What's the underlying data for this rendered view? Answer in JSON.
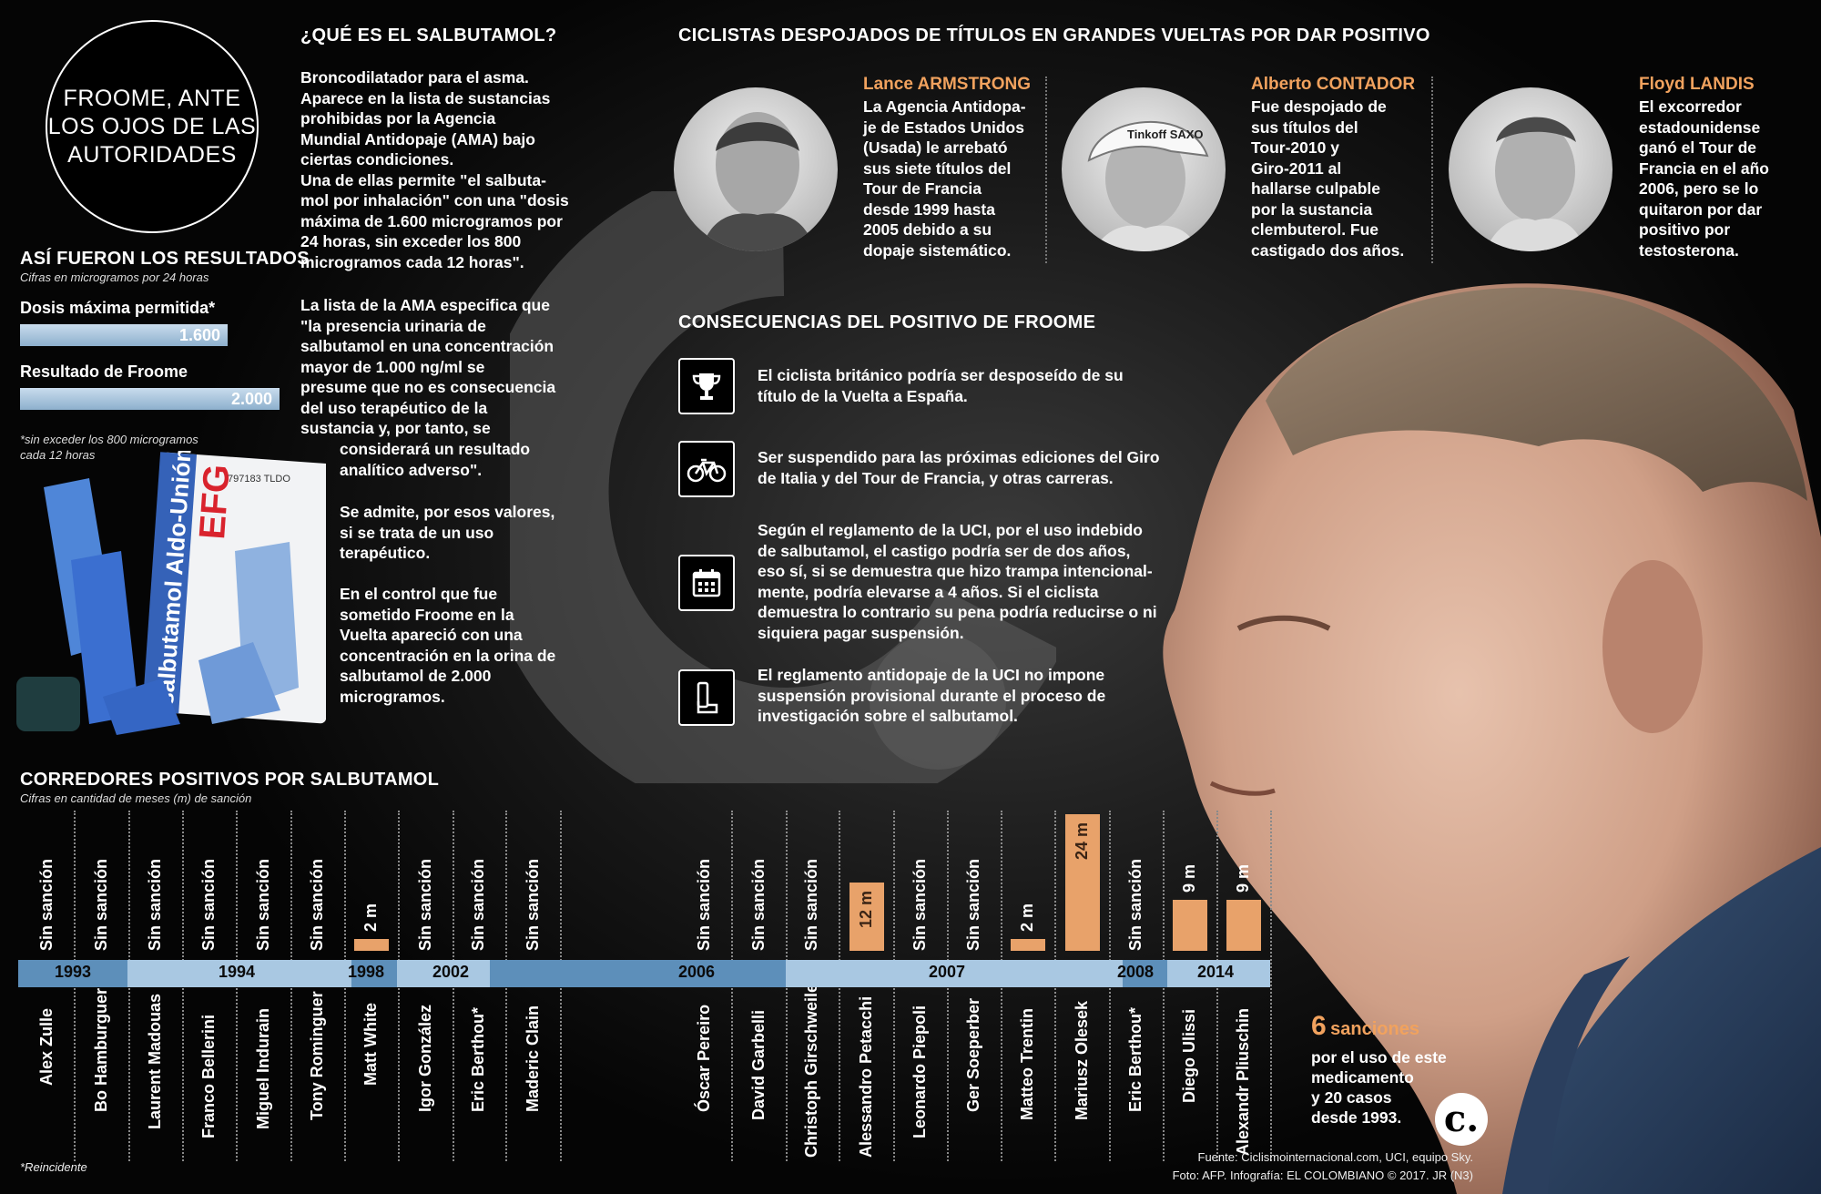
{
  "title": "FROOME, ANTE LOS OJOS DE LAS AUTORIDADES",
  "colors": {
    "accent_orange": "#e8a26a",
    "accent_name": "#f1a25e",
    "timeline_blue": "#5d8fba",
    "timeline_light": "#a9c8e2"
  },
  "results": {
    "heading": "ASÍ FUERON LOS RESULTADOS",
    "subtitle": "Cifras en microgramos por 24 horas",
    "items": [
      {
        "label": "Dosis máxima permitida*",
        "value_text": "1.600",
        "value": 1600
      },
      {
        "label": "Resultado de Froome",
        "value_text": "2.000",
        "value": 2000
      }
    ],
    "footnote": "*sin exceder los 800 microgramos\ncada 12 horas"
  },
  "inhaler": {
    "box_brand": "salbutamol Aldo-Unión",
    "box_logo": "EFG",
    "box_code": "797183 TLDO"
  },
  "salbutamol": {
    "heading": "¿QUÉ ES EL SALBUTAMOL?",
    "p1": "Broncodilatador para el asma.\nAparece en la lista de sustancias\nprohibidas por la Agencia\nMundial Antidopaje (AMA) bajo\nciertas condiciones.\nUna de ellas permite \"el salbuta-\nmol por inhalación\" con una \"dosis\nmáxima de 1.600 microgramos por\n24 horas, sin exceder los 800\nmicrogramos cada 12 horas\".",
    "p2": "La lista de la AMA especifica que\n\"la presencia urinaria de\nsalbutamol en una concentración\nmayor de 1.000 ng/ml se\npresume que no es consecuencia\ndel uso terapéutico de la\nsustancia y, por tanto, se",
    "p2b": "considerará un resultado\nanalítico adverso\".",
    "p3": "Se admite, por esos valores,\nsi se trata de un uso\nterapéutico.",
    "p4": "En el control que fue\nsometido Froome en la\nVuelta apareció con una\nconcentración en la orina de\nsalbutamol de 2.000\nmicrogramos."
  },
  "cyclists": {
    "heading": "CICLISTAS DESPOJADOS DE TÍTULOS EN GRANDES VUELTAS POR DAR POSITIVO",
    "items": [
      {
        "first": "Lance",
        "last": "ARMSTRONG",
        "text": "La Agencia Antidopa-\nje de Estados Unidos\n(Usada) le arrebató\nsus siete títulos del\nTour de Francia\ndesde 1999 hasta\n2005 debido a su\ndopaje sistemático."
      },
      {
        "first": "Alberto",
        "last": "CONTADOR",
        "text": "Fue despojado de\nsus títulos del\nTour-2010 y\nGiro-2011 al\nhallarse culpable\npor la sustancia\nclembuterol. Fue\ncastigado dos años.",
        "cap_text": "Tinkoff SAXO"
      },
      {
        "first": "Floyd",
        "last": "LANDIS",
        "text": "El excorredor\nestadounidense\nganó el Tour de\nFrancia en el año\n2006, pero se lo\nquitaron por dar\npositivo por\ntestosterona."
      }
    ]
  },
  "consequences": {
    "heading": "CONSECUENCIAS DEL POSITIVO DE FROOME",
    "items": [
      {
        "icon": "trophy-icon",
        "text": "El ciclista británico podría ser desposeído de su\ntítulo de la Vuelta a España."
      },
      {
        "icon": "bicycle-icon",
        "text": "Ser suspendido para las próximas ediciones del Giro\nde Italia y del Tour de Francia, y otras carreras."
      },
      {
        "icon": "calendar-icon",
        "text": "Según el reglamento de la UCI, por el uso indebido\nde salbutamol, el castigo podría ser de dos años,\neso sí, si se demuestra que hizo trampa intencional-\nmente, podría elevarse a 4 años. Si el ciclista\ndemuestra lo contrario su pena podría reducirse o ni\nsiquiera pagar suspensión."
      },
      {
        "icon": "inhaler-icon",
        "text": "El reglamento antidopaje de la UCI no impone\nsuspensión provisional durante el proceso de\ninvestigación sobre el salbutamol."
      }
    ]
  },
  "runners": {
    "heading": "CORREDORES POSITIVOS POR SALBUTAMOL",
    "subtitle": "Cifras en cantidad de meses (m) de sanción",
    "footnote": "*Reincidente",
    "years": [
      "1993",
      "1994",
      "1998",
      "2002",
      "2006",
      "2007",
      "2008",
      "2014"
    ]
  },
  "chart_data": {
    "type": "bar",
    "unit": "meses (m)",
    "categories": [
      "Alex Zulle",
      "Bo Hamburguer",
      "Laurent Madouas",
      "Franco Bellerini",
      "Miguel Indurain",
      "Tony Rominguer",
      "Matt White",
      "Igor González",
      "Eric Berthou*",
      "Maderic Clain",
      "Óscar Pereiro",
      "David Garbelli",
      "Christoph Girschweiler",
      "Alessandro Petacchi",
      "Leonardo Piepoli",
      "Ger Soeperber",
      "Matteo Trentin",
      "Mariusz Olesek",
      "Eric Berthou*",
      "Diego Ulissi",
      "Alexandr Pliuschin"
    ],
    "values": [
      0,
      0,
      0,
      0,
      0,
      0,
      2,
      0,
      0,
      0,
      0,
      0,
      0,
      12,
      0,
      0,
      2,
      24,
      0,
      9,
      9
    ],
    "labels": [
      "Sin sanción",
      "Sin sanción",
      "Sin sanción",
      "Sin sanción",
      "Sin sanción",
      "Sin sanción",
      "2 m",
      "Sin sanción",
      "Sin sanción",
      "Sin sanción",
      "Sin sanción",
      "Sin sanción",
      "Sin sanción",
      "12 m",
      "Sin sanción",
      "Sin sanción",
      "2 m",
      "24 m",
      "Sin sanción",
      "9 m",
      "9 m"
    ]
  },
  "summary": {
    "number": "6",
    "word": "sanciones",
    "text": "por el uso de este\nmedicamento\ny 20 casos\ndesde 1993."
  },
  "credits": {
    "line1": "Fuente: Ciclismointernacional.com, UCI, equipo Sky.",
    "line2": "Foto: AFP. Infografía: EL COLOMBIANO © 2017. JR (N3)"
  }
}
